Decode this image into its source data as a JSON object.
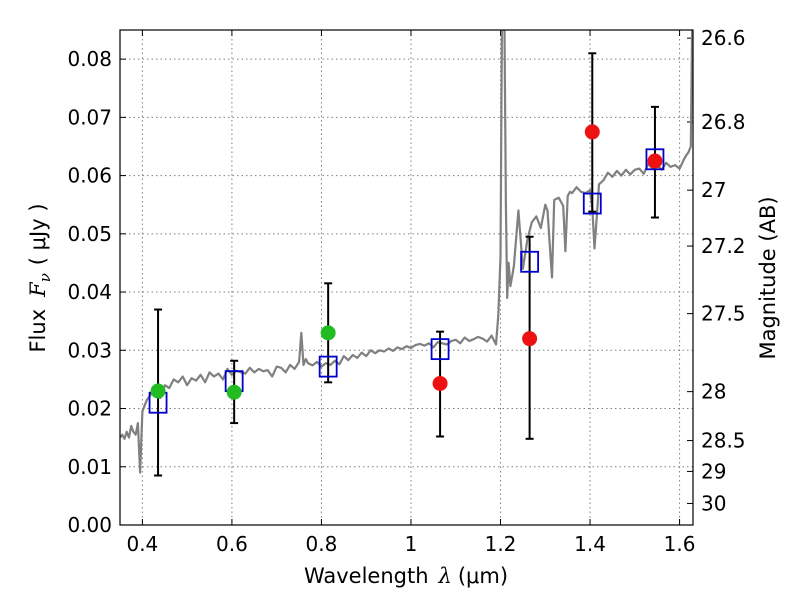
{
  "chart_data": {
    "type": "scatter",
    "xlabel_prefix": "Wavelength",
    "xlabel_symbol": "λ",
    "xlabel_unit": "(μm)",
    "ylabel_prefix": "Flux",
    "ylabel_symbol": "F",
    "ylabel_subscript": "ν",
    "ylabel_unit": "( μJy )",
    "y2label": "Magnitude (AB)",
    "xlim": [
      0.35,
      1.63
    ],
    "ylim": [
      0.0,
      0.085
    ],
    "grid": true,
    "x_ticks": [
      0.4,
      0.6,
      0.8,
      1.0,
      1.2,
      1.4,
      1.6
    ],
    "x_tick_labels": [
      "0.4",
      "0.6",
      "0.8",
      "1",
      "1.2",
      "1.4",
      "1.6"
    ],
    "y_ticks": [
      0.0,
      0.01,
      0.02,
      0.03,
      0.04,
      0.05,
      0.06,
      0.07,
      0.08
    ],
    "y_tick_labels": [
      "0.00",
      "0.01",
      "0.02",
      "0.03",
      "0.04",
      "0.05",
      "0.06",
      "0.07",
      "0.08"
    ],
    "mag_ticks": [
      {
        "label": "26.6",
        "flux": 0.0836
      },
      {
        "label": "26.8",
        "flux": 0.0692
      },
      {
        "label": "27",
        "flux": 0.0575
      },
      {
        "label": "27.2",
        "flux": 0.0479
      },
      {
        "label": "27.5",
        "flux": 0.0363
      },
      {
        "label": "28",
        "flux": 0.0229
      },
      {
        "label": "28.5",
        "flux": 0.0145
      },
      {
        "label": "29",
        "flux": 0.0092
      },
      {
        "label": "30",
        "flux": 0.0037
      }
    ],
    "colors": {
      "spectrum": "#808080",
      "model": "#0000cc",
      "green": "#22bb22",
      "red": "#ee1111",
      "errorbar": "#000000",
      "grid": "#7f7f7f"
    },
    "spectrum": {
      "x": [
        0.35,
        0.355,
        0.36,
        0.365,
        0.37,
        0.375,
        0.38,
        0.385,
        0.39,
        0.395,
        0.4,
        0.41,
        0.42,
        0.43,
        0.44,
        0.45,
        0.46,
        0.47,
        0.48,
        0.49,
        0.5,
        0.51,
        0.52,
        0.53,
        0.54,
        0.55,
        0.56,
        0.57,
        0.58,
        0.59,
        0.6,
        0.61,
        0.62,
        0.63,
        0.64,
        0.65,
        0.66,
        0.67,
        0.68,
        0.69,
        0.7,
        0.71,
        0.72,
        0.73,
        0.74,
        0.75,
        0.755,
        0.76,
        0.765,
        0.77,
        0.78,
        0.79,
        0.8,
        0.81,
        0.82,
        0.83,
        0.84,
        0.85,
        0.86,
        0.87,
        0.88,
        0.89,
        0.9,
        0.91,
        0.92,
        0.93,
        0.94,
        0.95,
        0.96,
        0.97,
        0.98,
        0.99,
        1.0,
        1.01,
        1.02,
        1.03,
        1.04,
        1.05,
        1.06,
        1.07,
        1.08,
        1.09,
        1.1,
        1.11,
        1.12,
        1.13,
        1.14,
        1.15,
        1.16,
        1.17,
        1.18,
        1.19,
        1.195,
        1.2,
        1.203,
        1.206,
        1.209,
        1.212,
        1.215,
        1.218,
        1.222,
        1.23,
        1.24,
        1.25,
        1.26,
        1.27,
        1.28,
        1.29,
        1.3,
        1.305,
        1.31,
        1.315,
        1.32,
        1.33,
        1.34,
        1.345,
        1.35,
        1.355,
        1.36,
        1.37,
        1.38,
        1.39,
        1.4,
        1.405,
        1.41,
        1.415,
        1.42,
        1.43,
        1.44,
        1.45,
        1.46,
        1.47,
        1.48,
        1.49,
        1.5,
        1.51,
        1.52,
        1.53,
        1.54,
        1.55,
        1.56,
        1.57,
        1.58,
        1.59,
        1.6,
        1.61,
        1.615,
        1.62,
        1.625,
        1.628
      ],
      "y": [
        0.015,
        0.0155,
        0.0148,
        0.016,
        0.015,
        0.017,
        0.016,
        0.0155,
        0.0175,
        0.009,
        0.0195,
        0.0215,
        0.0225,
        0.023,
        0.0218,
        0.024,
        0.0235,
        0.025,
        0.0245,
        0.0255,
        0.024,
        0.0252,
        0.0248,
        0.0258,
        0.0245,
        0.0262,
        0.0255,
        0.026,
        0.025,
        0.0268,
        0.0258,
        0.0265,
        0.0262,
        0.026,
        0.027,
        0.0262,
        0.0268,
        0.0264,
        0.0266,
        0.0255,
        0.0272,
        0.027,
        0.0262,
        0.0275,
        0.0268,
        0.028,
        0.033,
        0.0275,
        0.0285,
        0.0278,
        0.0274,
        0.028,
        0.0272,
        0.0278,
        0.0275,
        0.0282,
        0.0276,
        0.029,
        0.0283,
        0.0292,
        0.0287,
        0.0296,
        0.029,
        0.03,
        0.0295,
        0.03,
        0.0298,
        0.0303,
        0.0299,
        0.0305,
        0.0302,
        0.0307,
        0.0304,
        0.0309,
        0.0311,
        0.0308,
        0.0312,
        0.0305,
        0.0314,
        0.0312,
        0.031,
        0.0316,
        0.0318,
        0.0312,
        0.0322,
        0.0316,
        0.0319,
        0.0323,
        0.032,
        0.0315,
        0.0325,
        0.031,
        0.036,
        0.046,
        0.085,
        0.085,
        0.085,
        0.055,
        0.039,
        0.045,
        0.041,
        0.0445,
        0.054,
        0.044,
        0.049,
        0.052,
        0.053,
        0.051,
        0.055,
        0.054,
        0.048,
        0.0425,
        0.0558,
        0.0562,
        0.0548,
        0.047,
        0.0565,
        0.0572,
        0.057,
        0.058,
        0.0572,
        0.057,
        0.0575,
        0.0545,
        0.0475,
        0.053,
        0.0585,
        0.0592,
        0.0605,
        0.0598,
        0.0608,
        0.06,
        0.061,
        0.0602,
        0.061,
        0.0612,
        0.0603,
        0.062,
        0.0612,
        0.0618,
        0.061,
        0.0622,
        0.0615,
        0.0618,
        0.0612,
        0.0628,
        0.0635,
        0.064,
        0.065,
        0.085
      ]
    },
    "model_points": {
      "x": [
        0.435,
        0.605,
        0.815,
        1.065,
        1.265,
        1.405,
        1.545
      ],
      "y": [
        0.021,
        0.0247,
        0.0272,
        0.0302,
        0.0452,
        0.0552,
        0.0628
      ]
    },
    "green_points": {
      "x": [
        0.435,
        0.605,
        0.815
      ],
      "y": [
        0.023,
        0.0228,
        0.033
      ],
      "err_low": [
        0.0085,
        0.0175,
        0.0245
      ],
      "err_high": [
        0.037,
        0.0282,
        0.0415
      ]
    },
    "red_points": {
      "x": [
        1.065,
        1.265,
        1.405,
        1.545
      ],
      "y": [
        0.0243,
        0.032,
        0.0675,
        0.0625
      ],
      "err_low": [
        0.0152,
        0.0148,
        0.0538,
        0.0528
      ],
      "err_high": [
        0.0332,
        0.0495,
        0.081,
        0.0718
      ]
    }
  }
}
